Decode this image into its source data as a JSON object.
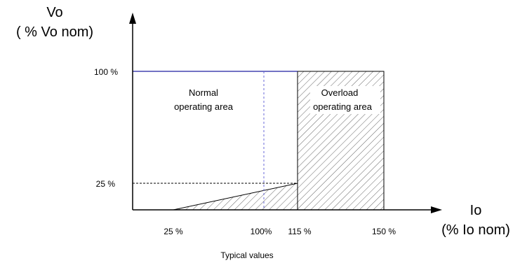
{
  "diagram": {
    "y_axis": {
      "title_line1": "Vo",
      "title_line2": "( % Vo nom)",
      "ticks": [
        {
          "label": "100 %",
          "value": 100
        },
        {
          "label": "25 %",
          "value": 25
        }
      ]
    },
    "x_axis": {
      "title_line1": "Io",
      "title_line2": "(% Io nom)",
      "ticks": [
        {
          "label": "25 %",
          "value": 25
        },
        {
          "label": "100%",
          "value": 100
        },
        {
          "label": "115 %",
          "value": 115
        },
        {
          "label": "150 %",
          "value": 150
        }
      ]
    },
    "regions": {
      "normal_line1": "Normal",
      "normal_line2": "operating area",
      "overload_line1": "Overload",
      "overload_line2": "operating area"
    },
    "caption": "Typical values",
    "colors": {
      "limit_line": "#1f1fa0",
      "guide_line": "#6a6ad8",
      "axis": "#000000",
      "hatch": "#555555"
    }
  }
}
